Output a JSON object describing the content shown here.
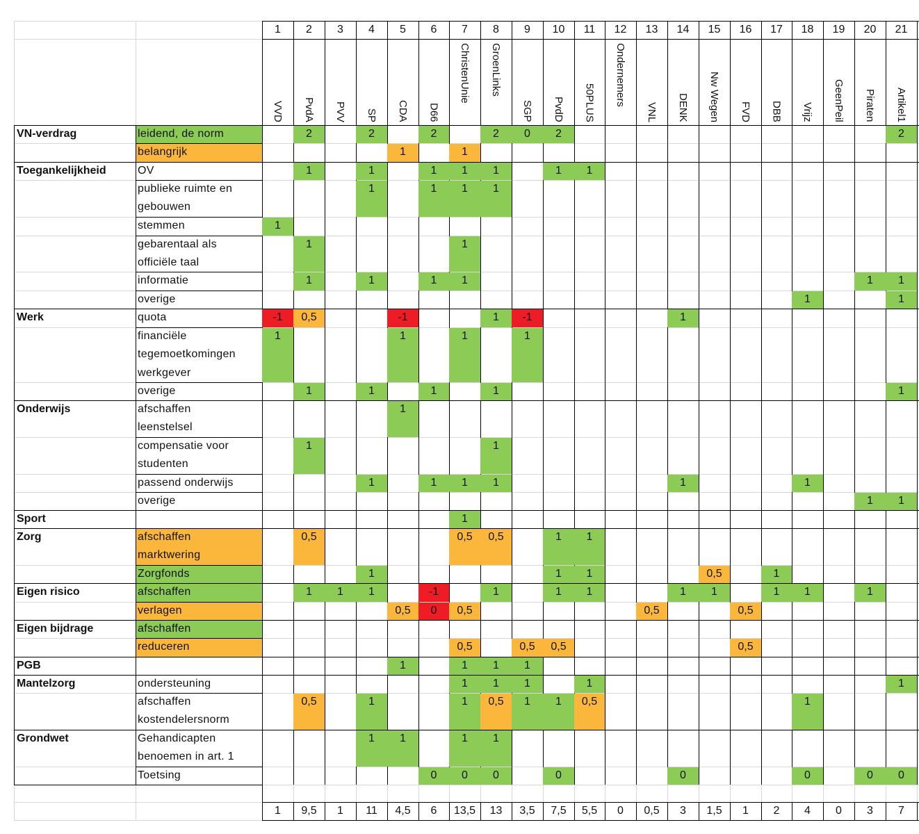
{
  "colors": {
    "green": "#8ccb56",
    "orange": "#fbb63c",
    "red": "#ee1c24",
    "grid": "#d8d8d8",
    "border": "#000000"
  },
  "header": {
    "numbers": [
      "1",
      "2",
      "3",
      "4",
      "5",
      "6",
      "7",
      "8",
      "9",
      "10",
      "11",
      "12",
      "13",
      "14",
      "15",
      "16",
      "17",
      "18",
      "19",
      "20",
      "21"
    ],
    "parties": [
      "VVD",
      "PvdA",
      "PVV",
      "SP",
      "CDA",
      "D66",
      "ChristenUnie",
      "GroenLinks",
      "SGP",
      "PvdD",
      "50PLUS",
      "Ondernemers",
      "VNL",
      "DENK",
      "Nw Wegen",
      "FVD",
      "DBB",
      "Vrijz",
      "GeenPeil",
      "Piraten",
      "Artikel1"
    ]
  },
  "categories": [
    {
      "label": "VN-verdrag"
    },
    {
      "label": "Toegankelijkheid"
    },
    {
      "label": "Werk"
    },
    {
      "label": "Onderwijs"
    },
    {
      "label": "Sport"
    },
    {
      "label": "Zorg"
    },
    {
      "label": "Eigen risico"
    },
    {
      "label": "Eigen bijdrage"
    },
    {
      "label": "PGB"
    },
    {
      "label": "Mantelzorg"
    },
    {
      "label": "Grondwet"
    }
  ],
  "items": [
    {
      "label": "leidend, de norm",
      "color": "green",
      "cells": [
        [
          "2",
          "green"
        ],
        [
          "4",
          "green"
        ],
        [
          "6",
          "green"
        ],
        [
          "8",
          "green"
        ],
        [
          "9",
          "green"
        ],
        [
          "10",
          "green"
        ],
        [
          "21",
          "green"
        ]
      ],
      "values": {
        "2": "2",
        "4": "2",
        "6": "2",
        "8": "2",
        "9": "0",
        "10": "2",
        "21": "2"
      }
    },
    {
      "label": "belangrijk",
      "color": "orange",
      "values": {
        "5": "1",
        "7": "1"
      }
    },
    {
      "label": "OV",
      "values": {
        "2": "1",
        "4": "1",
        "6": "1",
        "7": "1",
        "8": "1",
        "10": "1",
        "11": "1"
      }
    },
    {
      "label": "publieke ruimte en gebouwen",
      "values": {
        "4": "1",
        "6": "1",
        "7": "1",
        "8": "1"
      }
    },
    {
      "label": "stemmen",
      "values": {
        "1": "1"
      }
    },
    {
      "label": "gebarentaal als officiële taal",
      "values": {
        "2": "1",
        "7": "1"
      }
    },
    {
      "label": "informatie",
      "values": {
        "2": "1",
        "4": "1",
        "6": "1",
        "7": "1",
        "20": "1",
        "21": "1"
      }
    },
    {
      "label": "overige",
      "values": {
        "18": "1",
        "21": "1"
      }
    },
    {
      "label": "quota",
      "values": {
        "1": "-1",
        "2": "0,5",
        "5": "-1",
        "8": "1",
        "9": "-1",
        "14": "1"
      }
    },
    {
      "label": "financiële tegemoetkomingen werkgever",
      "values": {
        "1": "1",
        "5": "1",
        "7": "1",
        "9": "1"
      }
    },
    {
      "label": "overige",
      "values": {
        "2": "1",
        "4": "1",
        "6": "1",
        "8": "1",
        "21": "1"
      }
    },
    {
      "label": "afschaffen leenstelsel",
      "values": {
        "5": "1"
      }
    },
    {
      "label": "compensatie voor studenten",
      "values": {
        "2": "1",
        "8": "1"
      }
    },
    {
      "label": "passend onderwijs",
      "values": {
        "4": "1",
        "6": "1",
        "7": "1",
        "8": "1",
        "14": "1",
        "18": "1"
      }
    },
    {
      "label": "overige",
      "values": {
        "20": "1",
        "21": "1"
      }
    },
    {
      "label": "",
      "values": {
        "7": "1"
      }
    },
    {
      "label": "afschaffen marktwering",
      "color": "orange",
      "values": {
        "2": "0,5",
        "7": "0,5",
        "8": "0,5",
        "10": "1",
        "11": "1"
      }
    },
    {
      "label": "Zorgfonds",
      "color": "green",
      "values": {
        "4": "1",
        "10": "1",
        "11": "1",
        "15": "0,5",
        "17": "1"
      }
    },
    {
      "label": "afschaffen",
      "color": "green",
      "values": {
        "2": "1",
        "3": "1",
        "4": "1",
        "6": "-1",
        "8": "1",
        "10": "1",
        "11": "1",
        "14": "1",
        "15": "1",
        "17": "1",
        "18": "1",
        "20": "1"
      }
    },
    {
      "label": "verlagen",
      "color": "orange",
      "values": {
        "5": "0,5",
        "6": "0",
        "7": "0,5",
        "13": "0,5",
        "16": "0,5"
      }
    },
    {
      "label": "afschaffen",
      "color": "green",
      "values": {}
    },
    {
      "label": "reduceren",
      "color": "orange",
      "values": {
        "7": "0,5",
        "9": "0,5",
        "10": "0,5",
        "16": "0,5"
      }
    },
    {
      "label": "",
      "values": {
        "5": "1",
        "7": "1",
        "8": "1",
        "9": "1"
      }
    },
    {
      "label": "ondersteuning",
      "values": {
        "7": "1",
        "8": "1",
        "9": "1",
        "11": "1",
        "21": "1"
      }
    },
    {
      "label": "afschaffen kostendelersnorm",
      "values": {
        "2": "0,5",
        "4": "1",
        "7": "1",
        "8": "0,5",
        "9": "1",
        "10": "1",
        "11": "0,5",
        "18": "1"
      }
    },
    {
      "label": "Gehandicapten benoemen in art. 1",
      "values": {
        "4": "1",
        "5": "1",
        "7": "1",
        "8": "1"
      }
    },
    {
      "label": "Toetsing",
      "values": {
        "6": "0",
        "7": "0",
        "8": "0",
        "10": "0",
        "14": "0",
        "18": "0",
        "20": "0",
        "21": "0"
      }
    }
  ],
  "totals": [
    "1",
    "9,5",
    "1",
    "11",
    "4,5",
    "6",
    "13,5",
    "13",
    "3,5",
    "7,5",
    "5,5",
    "0",
    "0,5",
    "3",
    "1,5",
    "1",
    "2",
    "4",
    "0",
    "3",
    "7"
  ]
}
